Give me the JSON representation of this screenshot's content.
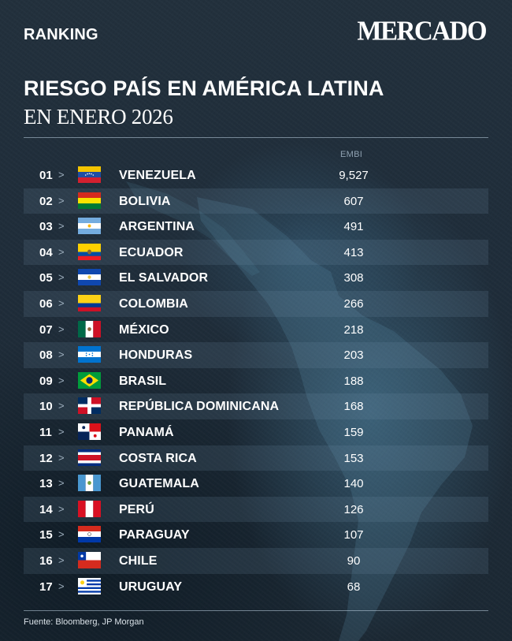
{
  "header": {
    "kicker": "RANKING",
    "brand": "MERCADO",
    "title": "RIESGO PAÍS EN AMÉRICA LATINA",
    "subtitle": "EN ENERO 2026"
  },
  "table": {
    "column_label": "EMBI",
    "arrow": ">"
  },
  "chart_data": {
    "type": "table",
    "columns": [
      "EMBI"
    ],
    "rows": [
      {
        "rank": "01",
        "country": "VENEZUELA",
        "value": "9,527",
        "flag_icon": "venezuela-flag-icon"
      },
      {
        "rank": "02",
        "country": "BOLIVIA",
        "value": "607",
        "flag_icon": "bolivia-flag-icon"
      },
      {
        "rank": "03",
        "country": "ARGENTINA",
        "value": "491",
        "flag_icon": "argentina-flag-icon"
      },
      {
        "rank": "04",
        "country": "ECUADOR",
        "value": "413",
        "flag_icon": "ecuador-flag-icon"
      },
      {
        "rank": "05",
        "country": "EL SALVADOR",
        "value": "308",
        "flag_icon": "el-salvador-flag-icon"
      },
      {
        "rank": "06",
        "country": "COLOMBIA",
        "value": "266",
        "flag_icon": "colombia-flag-icon"
      },
      {
        "rank": "07",
        "country": "MÉXICO",
        "value": "218",
        "flag_icon": "mexico-flag-icon"
      },
      {
        "rank": "08",
        "country": "HONDURAS",
        "value": "203",
        "flag_icon": "honduras-flag-icon"
      },
      {
        "rank": "09",
        "country": "BRASIL",
        "value": "188",
        "flag_icon": "brazil-flag-icon"
      },
      {
        "rank": "10",
        "country": "REPÚBLICA DOMINICANA",
        "value": "168",
        "flag_icon": "dominican-republic-flag-icon"
      },
      {
        "rank": "11",
        "country": "PANAMÁ",
        "value": "159",
        "flag_icon": "panama-flag-icon"
      },
      {
        "rank": "12",
        "country": "COSTA RICA",
        "value": "153",
        "flag_icon": "costa-rica-flag-icon"
      },
      {
        "rank": "13",
        "country": "GUATEMALA",
        "value": "140",
        "flag_icon": "guatemala-flag-icon"
      },
      {
        "rank": "14",
        "country": "PERÚ",
        "value": "126",
        "flag_icon": "peru-flag-icon"
      },
      {
        "rank": "15",
        "country": "PARAGUAY",
        "value": "107",
        "flag_icon": "paraguay-flag-icon"
      },
      {
        "rank": "16",
        "country": "CHILE",
        "value": "90",
        "flag_icon": "chile-flag-icon"
      },
      {
        "rank": "17",
        "country": "URUGUAY",
        "value": "68",
        "flag_icon": "uruguay-flag-icon"
      }
    ]
  },
  "footer": {
    "source": "Fuente: Bloomberg, JP Morgan"
  },
  "colors": {
    "background": "#1f2d3a",
    "text": "#ffffff",
    "muted": "#8fa2b2",
    "stripe": "#2e3f4d"
  }
}
